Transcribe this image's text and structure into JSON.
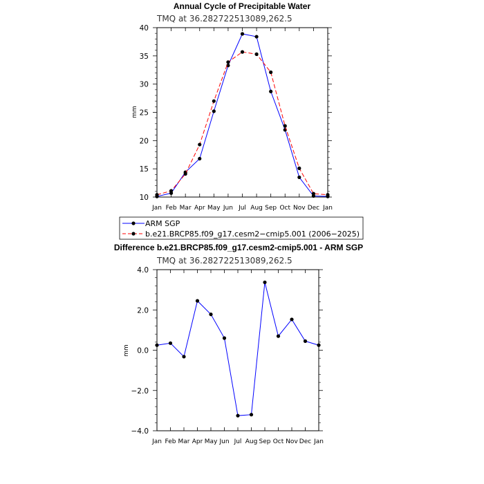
{
  "chart_data": [
    {
      "type": "line",
      "title": "Annual Cycle of Precipitable Water",
      "subtitle": "TMQ at 36.282722513089,262.5",
      "xlabel": "",
      "ylabel": "mm",
      "categories": [
        "Jan",
        "Feb",
        "Mar",
        "Apr",
        "May",
        "Jun",
        "Jul",
        "Aug",
        "Sep",
        "Oct",
        "Nov",
        "Dec",
        "Jan"
      ],
      "ylim": [
        10,
        40
      ],
      "yticks": [
        10,
        15,
        20,
        25,
        30,
        35,
        40
      ],
      "ytick_labels": [
        "10",
        "15",
        "20",
        "25",
        "30",
        "35",
        "40"
      ],
      "grid": false,
      "legend_position": "below",
      "series": [
        {
          "name": "ARM SGP",
          "color": "#0000ff",
          "style": "solid",
          "marker": "dot",
          "values": [
            10.1,
            10.7,
            14.4,
            16.8,
            25.2,
            33.3,
            38.9,
            38.4,
            28.7,
            21.9,
            13.5,
            10.2,
            10.1
          ]
        },
        {
          "name": "b.e21.BRCP85.f09_g17.cesm2−cmip5.001 (2006−2025)",
          "color": "#ff0000",
          "style": "dashed",
          "marker": "dot",
          "values": [
            10.4,
            11.1,
            14.1,
            19.3,
            27.0,
            33.9,
            35.7,
            35.3,
            32.1,
            22.6,
            15.1,
            10.6,
            10.4
          ]
        }
      ]
    },
    {
      "type": "line",
      "title": "Difference b.e21.BRCP85.f09_g17.cesm2-cmip5.001 - ARM SGP",
      "subtitle": "TMQ at 36.282722513089,262.5",
      "xlabel": "",
      "ylabel": "mm",
      "categories": [
        "Jan",
        "Feb",
        "Mar",
        "Apr",
        "May",
        "Jun",
        "Jul",
        "Aug",
        "Sep",
        "Oct",
        "Nov",
        "Dec",
        "Jan"
      ],
      "ylim": [
        -4,
        4
      ],
      "yticks": [
        -4,
        -2,
        0,
        2,
        4
      ],
      "ytick_labels": [
        "−4.0",
        "−2.0",
        "0.0",
        "2.0",
        "4.0"
      ],
      "grid": false,
      "series": [
        {
          "name": "",
          "color": "#0000ff",
          "style": "solid",
          "marker": "dot",
          "values": [
            0.25,
            0.35,
            -0.32,
            2.45,
            1.78,
            0.6,
            -3.25,
            -3.2,
            3.37,
            0.7,
            1.53,
            0.45,
            0.25
          ]
        }
      ]
    }
  ]
}
